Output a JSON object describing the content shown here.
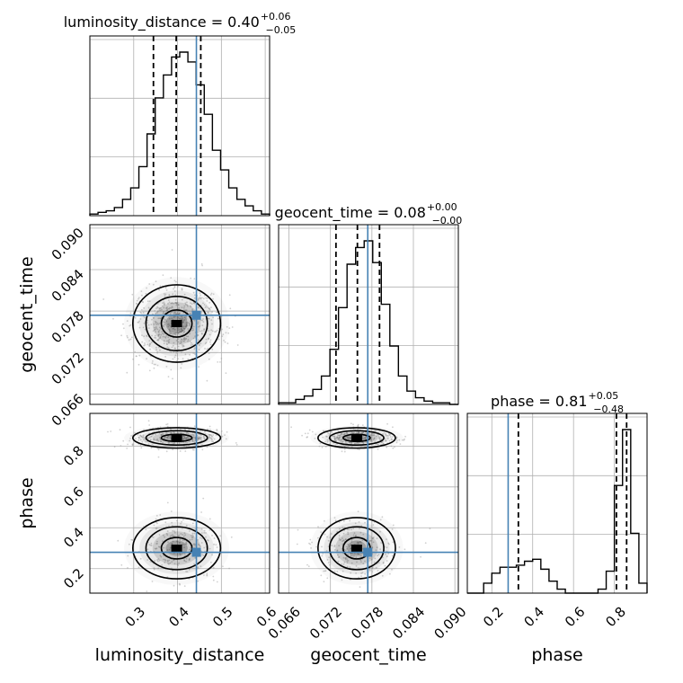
{
  "chart_data": {
    "type": "corner",
    "parameters": [
      "luminosity_distance",
      "geocent_time",
      "phase"
    ],
    "truths": {
      "luminosity_distance": 0.443,
      "geocent_time": 0.0774,
      "phase": 0.28
    },
    "titles": [
      {
        "param": "luminosity_distance",
        "main": "luminosity_distance = 0.40",
        "upper": "+0.06",
        "lower": "−0.05"
      },
      {
        "param": "geocent_time",
        "main": "geocent_time = 0.08",
        "upper": "+0.00",
        "lower": "−0.00"
      },
      {
        "param": "phase",
        "main": "phase = 0.81",
        "upper": "+0.05",
        "lower": "−0.48"
      }
    ],
    "axis_labels": {
      "luminosity_distance": "luminosity_distance",
      "geocent_time": "geocent_time",
      "phase": "phase"
    },
    "ranges": {
      "luminosity_distance": [
        0.2,
        0.61
      ],
      "geocent_time": [
        0.0645,
        0.0905
      ],
      "phase": [
        0.08,
        0.96
      ]
    },
    "ticks": {
      "luminosity_distance": [
        "0.3",
        "0.4",
        "0.5",
        "0.6"
      ],
      "geocent_time": [
        "0.066",
        "0.072",
        "0.078",
        "0.084",
        "0.090"
      ],
      "phase": [
        "0.2",
        "0.4",
        "0.6",
        "0.8"
      ]
    },
    "quantiles": {
      "luminosity_distance": [
        0.345,
        0.397,
        0.453
      ],
      "geocent_time": [
        0.0728,
        0.0759,
        0.0791
      ],
      "phase": [
        0.33,
        0.81,
        0.86
      ]
    },
    "histograms": {
      "luminosity_distance": [
        1,
        2,
        3,
        5,
        10,
        17,
        30,
        50,
        72,
        86,
        97,
        100,
        94,
        80,
        62,
        40,
        28,
        17,
        10,
        6,
        3,
        1
      ],
      "geocent_time": [
        1,
        1,
        3,
        5,
        9,
        17,
        33,
        58,
        84,
        94,
        98,
        85,
        60,
        35,
        17,
        8,
        4,
        2,
        1,
        1,
        0
      ],
      "phase": [
        0,
        0,
        5,
        10,
        13,
        13,
        14,
        16,
        17,
        12,
        6,
        2,
        0,
        0,
        0,
        0,
        2,
        11,
        54,
        82,
        30,
        5
      ]
    },
    "grid": true
  }
}
